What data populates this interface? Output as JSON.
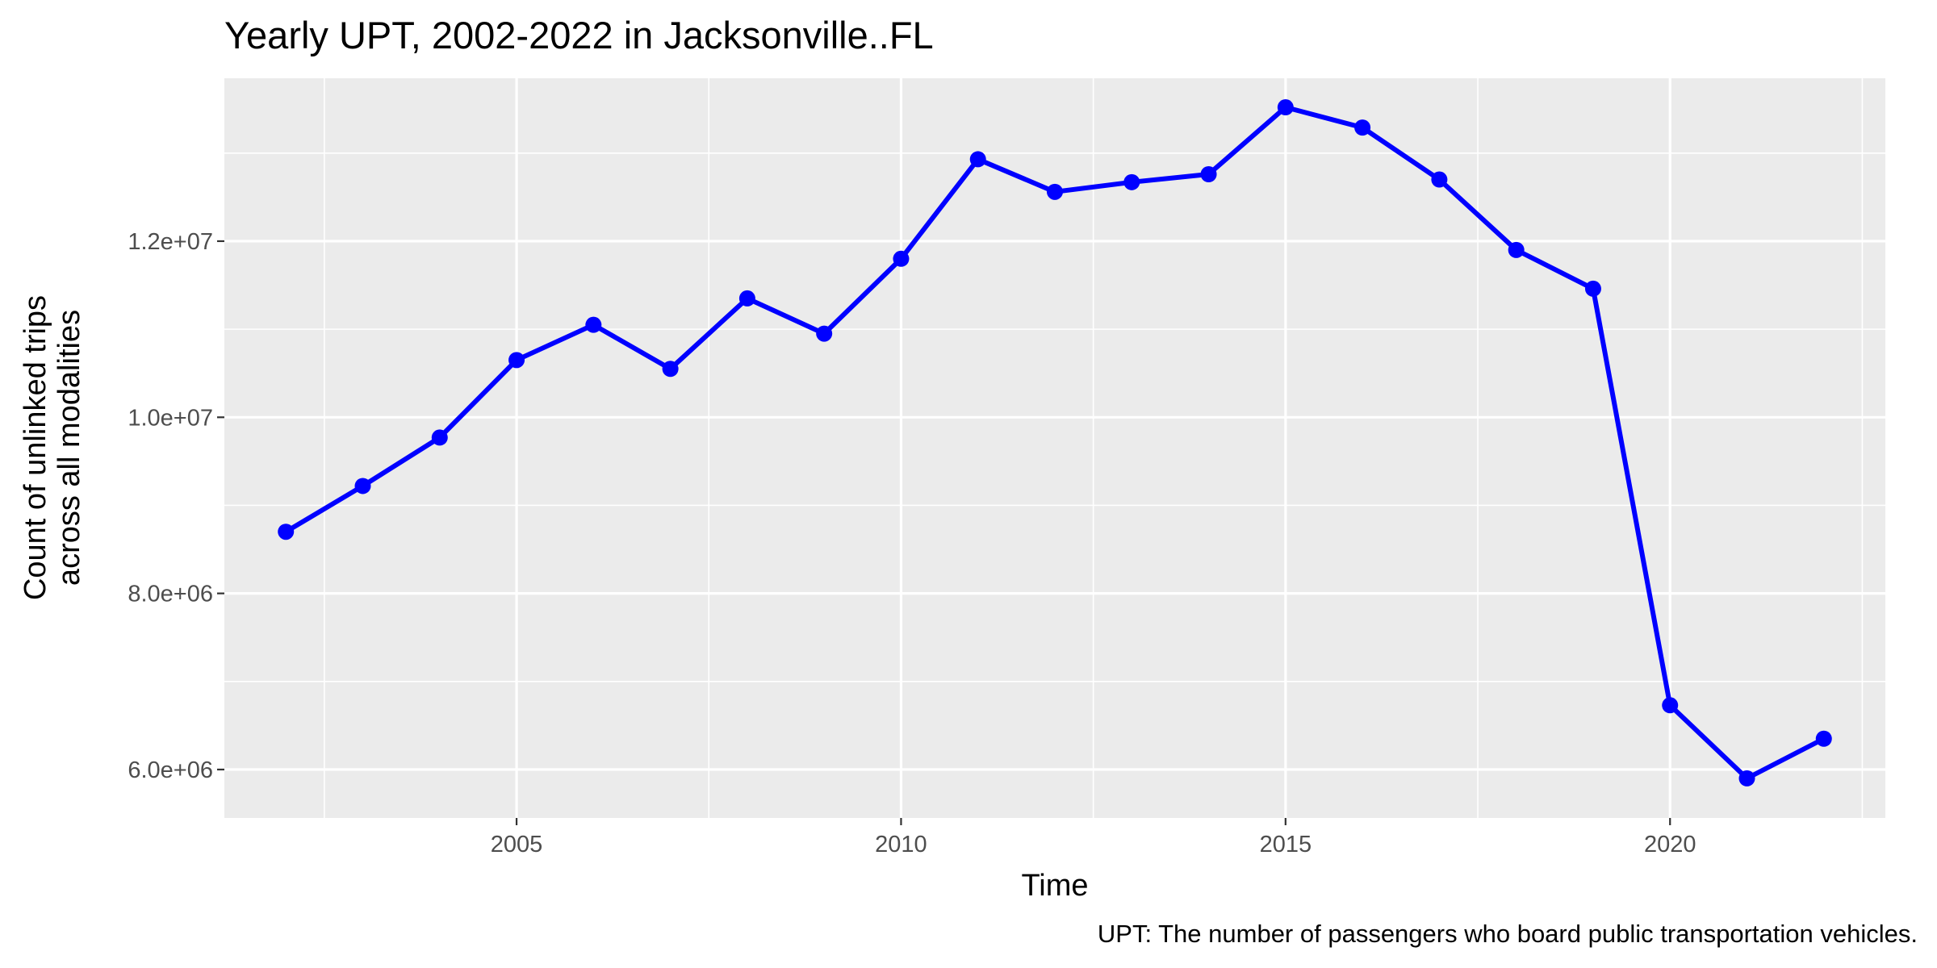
{
  "chart_data": {
    "type": "line",
    "title": "Yearly UPT, 2002-2022 in Jacksonville..FL",
    "xlabel": "Time",
    "ylabel_lines": [
      "Count of unlinked trips",
      "across all modalities"
    ],
    "caption": "UPT: The number of passengers who board public transportation vehicles.",
    "xlim": [
      2001.2,
      2022.8
    ],
    "ylim": [
      5450000,
      13850000
    ],
    "x_ticks": [
      2005,
      2010,
      2015,
      2020
    ],
    "x_tick_labels": [
      "2005",
      "2010",
      "2015",
      "2020"
    ],
    "y_ticks": [
      6000000,
      8000000,
      10000000,
      12000000
    ],
    "y_tick_labels": [
      "6.0e+06",
      "8.0e+06",
      "1.0e+07",
      "1.2e+07"
    ],
    "grid": true,
    "series_color": "#0000ff",
    "panel_color": "#ebebeb",
    "grid_color": "#ffffff",
    "series": [
      {
        "x": [
          2002,
          2003,
          2004,
          2005,
          2006,
          2007,
          2008,
          2009,
          2010,
          2011,
          2012,
          2013,
          2014,
          2015,
          2016,
          2017,
          2018,
          2019,
          2020,
          2021,
          2022
        ],
        "values": [
          8700000,
          9220000,
          9770000,
          10650000,
          11050000,
          10550000,
          11350000,
          10950000,
          11800000,
          12930000,
          12560000,
          12670000,
          12760000,
          13520000,
          13290000,
          12700000,
          11900000,
          11460000,
          6730000,
          5900000,
          6350000
        ]
      }
    ]
  }
}
